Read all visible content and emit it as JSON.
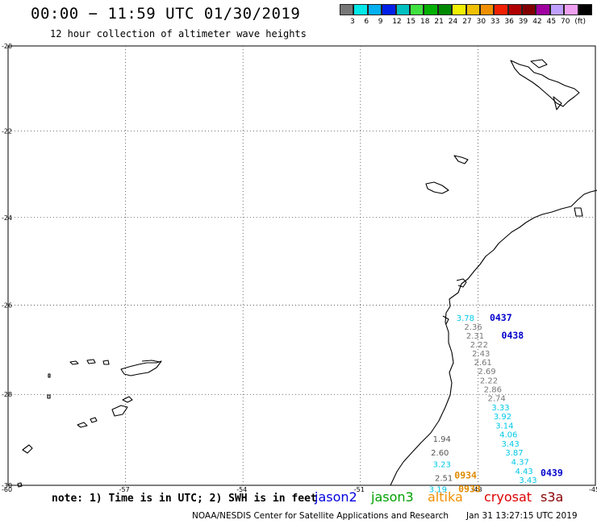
{
  "header": {
    "title": "00:00 − 11:59 UTC 01/30/2019",
    "subtitle": "12 hour collection of altimeter wave heights"
  },
  "legend": {
    "colors": [
      "#777777",
      "#00e8e8",
      "#00b0f0",
      "#0020e8",
      "#00c0c0",
      "#40e040",
      "#00b000",
      "#008800",
      "#f0f000",
      "#f0c000",
      "#f09000",
      "#f02000",
      "#b00000",
      "#800000",
      "#a000a0",
      "#c0a0ff",
      "#f0a0f0",
      "#000000"
    ],
    "labels": [
      "3",
      "6",
      "9",
      "12",
      "15",
      "18",
      "21",
      "24",
      "27",
      "30",
      "33",
      "36",
      "39",
      "42",
      "45",
      "70",
      "(ft)"
    ]
  },
  "map": {
    "lat_labels": [
      "-20",
      "-22",
      "-24",
      "-26",
      "-28",
      "-30"
    ],
    "lon_labels": [
      "-60",
      "-57",
      "-54",
      "-51",
      "-48",
      "-45"
    ],
    "lat_values": [
      -20,
      -22,
      -24,
      -26,
      -28,
      -30
    ],
    "lon_values": [
      -60,
      -57,
      -54,
      -51,
      -48,
      -45
    ],
    "observations": [
      {
        "label": "3.78",
        "color": "#00c8e8",
        "lon": -48.55,
        "lat": -26.35
      },
      {
        "label": "2.36",
        "color": "#777777",
        "lon": -48.35,
        "lat": -26.55
      },
      {
        "label": "2.31",
        "color": "#777777",
        "lon": -48.3,
        "lat": -26.75
      },
      {
        "label": "2.22",
        "color": "#777777",
        "lon": -48.2,
        "lat": -26.95
      },
      {
        "label": "2.43",
        "color": "#777777",
        "lon": -48.15,
        "lat": -27.15
      },
      {
        "label": "2.61",
        "color": "#777777",
        "lon": -48.1,
        "lat": -27.35
      },
      {
        "label": "2.69",
        "color": "#777777",
        "lon": -48.0,
        "lat": -27.55
      },
      {
        "label": "2.22",
        "color": "#777777",
        "lon": -47.95,
        "lat": -27.75
      },
      {
        "label": "2.86",
        "color": "#777777",
        "lon": -47.85,
        "lat": -27.95
      },
      {
        "label": "2.74",
        "color": "#777777",
        "lon": -47.75,
        "lat": -28.15
      },
      {
        "label": "3.33",
        "color": "#00c8e8",
        "lon": -47.65,
        "lat": -28.35
      },
      {
        "label": "3.92",
        "color": "#00c8e8",
        "lon": -47.6,
        "lat": -28.55
      },
      {
        "label": "3.14",
        "color": "#00c8e8",
        "lon": -47.55,
        "lat": -28.75
      },
      {
        "label": "4.06",
        "color": "#00c8e8",
        "lon": -47.45,
        "lat": -28.95
      },
      {
        "label": "3.43",
        "color": "#00c8e8",
        "lon": -47.4,
        "lat": -29.15
      },
      {
        "label": "3.87",
        "color": "#00c8e8",
        "lon": -47.3,
        "lat": -29.35
      },
      {
        "label": "4.37",
        "color": "#00c8e8",
        "lon": -47.15,
        "lat": -29.55
      },
      {
        "label": "4.43",
        "color": "#00c8e8",
        "lon": -47.05,
        "lat": -29.75
      },
      {
        "label": "3.43",
        "color": "#00c8e8",
        "lon": -46.95,
        "lat": -29.95
      },
      {
        "label": "1.94",
        "color": "#555555",
        "lon": -49.15,
        "lat": -29.05
      },
      {
        "label": "2.60",
        "color": "#555555",
        "lon": -49.2,
        "lat": -29.35
      },
      {
        "label": "3.23",
        "color": "#00c8e8",
        "lon": -49.15,
        "lat": -29.6
      },
      {
        "label": "2.51",
        "color": "#555555",
        "lon": -49.1,
        "lat": -29.9
      },
      {
        "label": "3.19",
        "color": "#00c8e8",
        "lon": -49.25,
        "lat": -30.15
      }
    ],
    "pass_times": [
      {
        "label": "0437",
        "color": "#0000cc",
        "lon": -47.7,
        "lat": -26.35
      },
      {
        "label": "0438",
        "color": "#0000cc",
        "lon": -47.4,
        "lat": -26.75
      },
      {
        "label": "0439",
        "color": "#0000cc",
        "lon": -46.4,
        "lat": -29.8
      },
      {
        "label": "0934",
        "color": "#e08a00",
        "lon": -48.6,
        "lat": -29.85
      },
      {
        "label": "0933",
        "color": "#e08a00",
        "lon": -48.5,
        "lat": -30.15
      }
    ]
  },
  "footer": {
    "note": "note: 1) Time is in UTC; 2) SWH is in feet",
    "satellites": [
      {
        "name": "jason2",
        "color": "#0000dd"
      },
      {
        "name": "jason3",
        "color": "#00a000"
      },
      {
        "name": "altika",
        "color": "#f09000"
      },
      {
        "name": "cryosat",
        "color": "#dd0000"
      },
      {
        "name": "s3a",
        "color": "#880000"
      }
    ],
    "credit": "NOAA/NESDIS Center for Satellite Applications and Research",
    "timestamp": "Jan 31 13:27:15 UTC 2019"
  }
}
